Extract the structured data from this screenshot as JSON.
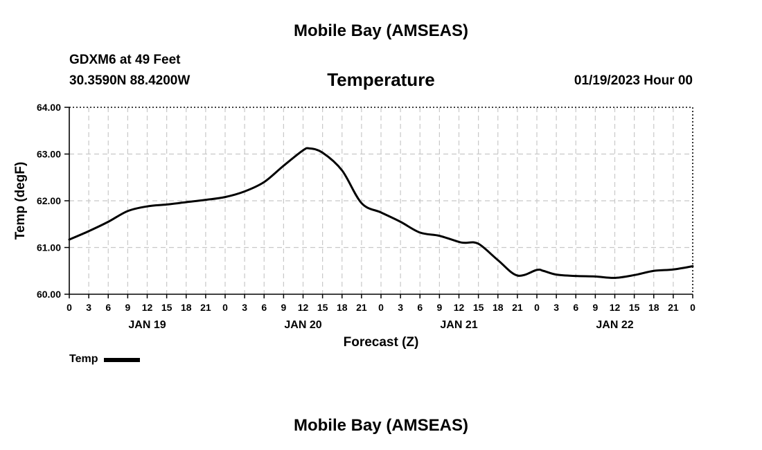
{
  "header": {
    "title": "Mobile Bay (AMSEAS)",
    "station": "GDXM6 at 49 Feet",
    "coordinates": "30.3590N  88.4200W",
    "variable": "Temperature",
    "timestamp": "01/19/2023 Hour 00"
  },
  "legend": {
    "label": "Temp",
    "color": "#000000"
  },
  "footer": {
    "title": "Mobile Bay (AMSEAS)"
  },
  "chart_data": {
    "type": "line",
    "title": "Temperature",
    "xlabel": "Forecast (Z)",
    "ylabel": "Temp (degF)",
    "xlim": [
      0,
      96
    ],
    "ylim": [
      60,
      64
    ],
    "y_ticks": [
      "60.00",
      "61.00",
      "62.00",
      "63.00",
      "64.00"
    ],
    "x_tick_labels": [
      "0",
      "3",
      "6",
      "9",
      "12",
      "15",
      "18",
      "21",
      "0",
      "3",
      "6",
      "9",
      "12",
      "15",
      "18",
      "21",
      "0",
      "3",
      "6",
      "9",
      "12",
      "15",
      "18",
      "21",
      "0",
      "3",
      "6",
      "9",
      "12",
      "15",
      "18",
      "21",
      "0"
    ],
    "day_labels": [
      {
        "label": "JAN 19",
        "hour": 12
      },
      {
        "label": "JAN 20",
        "hour": 36
      },
      {
        "label": "JAN 21",
        "hour": 60
      },
      {
        "label": "JAN 22",
        "hour": 84
      }
    ],
    "grid": true,
    "series": [
      {
        "name": "Temp",
        "color": "#000000",
        "x": [
          0,
          3,
          6,
          9,
          12,
          15,
          18,
          21,
          24,
          27,
          30,
          33,
          36,
          37,
          39,
          42,
          45,
          48,
          51,
          54,
          57,
          60,
          61,
          63,
          66,
          69,
          72,
          73,
          75,
          78,
          81,
          84,
          87,
          90,
          93,
          96
        ],
        "y": [
          61.17,
          61.35,
          61.55,
          61.78,
          61.88,
          61.92,
          61.97,
          62.02,
          62.08,
          62.2,
          62.4,
          62.75,
          63.08,
          63.12,
          63.03,
          62.65,
          61.95,
          61.75,
          61.55,
          61.32,
          61.25,
          61.12,
          61.1,
          61.08,
          60.73,
          60.4,
          60.52,
          60.5,
          60.42,
          60.39,
          60.38,
          60.35,
          60.41,
          60.5,
          60.53,
          60.6
        ]
      }
    ]
  }
}
